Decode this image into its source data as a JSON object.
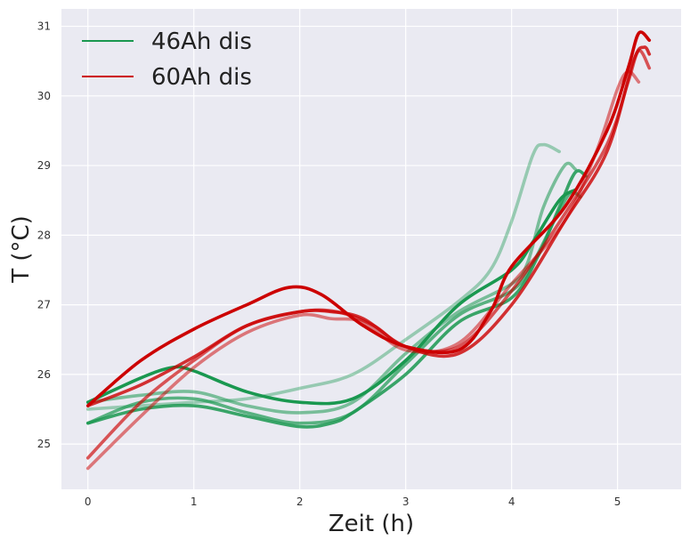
{
  "chart_data": {
    "type": "line",
    "title": "",
    "xlabel": "Zeit (h)",
    "ylabel": "T (°C)",
    "xlim": [
      -0.25,
      5.6
    ],
    "ylim": [
      24.35,
      31.25
    ],
    "x_ticks": [
      0,
      1,
      2,
      3,
      4,
      5
    ],
    "y_ticks": [
      25,
      26,
      27,
      28,
      29,
      30,
      31
    ],
    "grid": true,
    "legend_position": "top-left",
    "legend": [
      {
        "label": "46Ah dis",
        "color": "#1a9850"
      },
      {
        "label": "60Ah dis",
        "color": "#cc0000"
      }
    ],
    "series": [
      {
        "group": "46Ah dis",
        "color": "#1a9850",
        "opacity": 0.4,
        "points": [
          [
            0,
            25.5
          ],
          [
            0.5,
            25.55
          ],
          [
            1,
            25.6
          ],
          [
            1.5,
            25.65
          ],
          [
            2,
            25.8
          ],
          [
            2.5,
            26.0
          ],
          [
            3,
            26.5
          ],
          [
            3.5,
            27.05
          ],
          [
            3.8,
            27.5
          ],
          [
            4.0,
            28.2
          ],
          [
            4.2,
            29.15
          ],
          [
            4.3,
            29.3
          ],
          [
            4.45,
            29.2
          ]
        ]
      },
      {
        "group": "46Ah dis",
        "color": "#1a9850",
        "opacity": 0.55,
        "points": [
          [
            0,
            25.6
          ],
          [
            0.5,
            25.7
          ],
          [
            1,
            25.75
          ],
          [
            1.5,
            25.55
          ],
          [
            2,
            25.45
          ],
          [
            2.5,
            25.6
          ],
          [
            3,
            26.3
          ],
          [
            3.5,
            26.9
          ],
          [
            4.0,
            27.3
          ],
          [
            4.15,
            27.6
          ],
          [
            4.3,
            28.4
          ],
          [
            4.5,
            29.0
          ],
          [
            4.6,
            28.95
          ]
        ]
      },
      {
        "group": "46Ah dis",
        "color": "#1a9850",
        "opacity": 0.7,
        "points": [
          [
            0,
            25.3
          ],
          [
            0.5,
            25.6
          ],
          [
            1,
            25.65
          ],
          [
            1.5,
            25.45
          ],
          [
            2,
            25.3
          ],
          [
            2.5,
            25.45
          ],
          [
            3,
            26.15
          ],
          [
            3.5,
            26.85
          ],
          [
            4.0,
            27.2
          ],
          [
            4.2,
            27.6
          ],
          [
            4.4,
            28.2
          ],
          [
            4.55,
            28.6
          ],
          [
            4.65,
            28.55
          ]
        ]
      },
      {
        "group": "46Ah dis",
        "color": "#1a9850",
        "opacity": 0.85,
        "points": [
          [
            0,
            25.3
          ],
          [
            0.5,
            25.5
          ],
          [
            1,
            25.55
          ],
          [
            1.5,
            25.4
          ],
          [
            2,
            25.25
          ],
          [
            2.3,
            25.3
          ],
          [
            2.5,
            25.45
          ],
          [
            3,
            26.0
          ],
          [
            3.5,
            26.75
          ],
          [
            4.0,
            27.1
          ],
          [
            4.25,
            27.7
          ],
          [
            4.45,
            28.4
          ],
          [
            4.6,
            28.9
          ],
          [
            4.7,
            28.85
          ]
        ]
      },
      {
        "group": "46Ah dis",
        "color": "#1a9850",
        "opacity": 1.0,
        "points": [
          [
            0,
            25.6
          ],
          [
            0.5,
            25.95
          ],
          [
            0.8,
            26.1
          ],
          [
            1,
            26.05
          ],
          [
            1.5,
            25.75
          ],
          [
            2,
            25.6
          ],
          [
            2.5,
            25.65
          ],
          [
            3,
            26.2
          ],
          [
            3.5,
            27.0
          ],
          [
            4.0,
            27.5
          ],
          [
            4.2,
            27.9
          ],
          [
            4.45,
            28.5
          ],
          [
            4.6,
            28.65
          ]
        ]
      },
      {
        "group": "60Ah dis",
        "color": "#cc0000",
        "opacity": 0.5,
        "points": [
          [
            0,
            24.65
          ],
          [
            0.5,
            25.4
          ],
          [
            1,
            26.1
          ],
          [
            1.5,
            26.6
          ],
          [
            2,
            26.85
          ],
          [
            2.3,
            26.8
          ],
          [
            2.6,
            26.75
          ],
          [
            3,
            26.35
          ],
          [
            3.5,
            26.45
          ],
          [
            4.0,
            27.3
          ],
          [
            4.5,
            28.2
          ],
          [
            4.8,
            29.2
          ],
          [
            5.0,
            30.1
          ],
          [
            5.1,
            30.35
          ],
          [
            5.2,
            30.2
          ]
        ]
      },
      {
        "group": "60Ah dis",
        "color": "#cc0000",
        "opacity": 0.65,
        "points": [
          [
            0,
            24.8
          ],
          [
            0.5,
            25.6
          ],
          [
            1,
            26.2
          ],
          [
            1.5,
            26.7
          ],
          [
            2,
            26.9
          ],
          [
            2.35,
            26.9
          ],
          [
            2.7,
            26.7
          ],
          [
            3,
            26.4
          ],
          [
            3.5,
            26.4
          ],
          [
            4.0,
            27.2
          ],
          [
            4.5,
            28.3
          ],
          [
            4.9,
            29.3
          ],
          [
            5.1,
            30.2
          ],
          [
            5.2,
            30.65
          ],
          [
            5.3,
            30.4
          ]
        ]
      },
      {
        "group": "60Ah dis",
        "color": "#cc0000",
        "opacity": 0.8,
        "points": [
          [
            0,
            25.55
          ],
          [
            0.5,
            25.85
          ],
          [
            1,
            26.25
          ],
          [
            1.5,
            26.7
          ],
          [
            2,
            26.9
          ],
          [
            2.3,
            26.9
          ],
          [
            2.6,
            26.8
          ],
          [
            3,
            26.4
          ],
          [
            3.5,
            26.3
          ],
          [
            4.0,
            27.0
          ],
          [
            4.5,
            28.2
          ],
          [
            4.9,
            29.2
          ],
          [
            5.15,
            30.5
          ],
          [
            5.25,
            30.7
          ],
          [
            5.3,
            30.6
          ]
        ]
      },
      {
        "group": "60Ah dis",
        "color": "#cc0000",
        "opacity": 1.0,
        "points": [
          [
            0,
            25.55
          ],
          [
            0.5,
            26.2
          ],
          [
            1,
            26.65
          ],
          [
            1.5,
            27.0
          ],
          [
            1.9,
            27.25
          ],
          [
            2.2,
            27.15
          ],
          [
            2.6,
            26.7
          ],
          [
            3,
            26.4
          ],
          [
            3.5,
            26.35
          ],
          [
            3.8,
            26.9
          ],
          [
            4.0,
            27.55
          ],
          [
            4.5,
            28.4
          ],
          [
            4.9,
            29.5
          ],
          [
            5.1,
            30.4
          ],
          [
            5.2,
            30.9
          ],
          [
            5.3,
            30.8
          ]
        ]
      }
    ]
  }
}
